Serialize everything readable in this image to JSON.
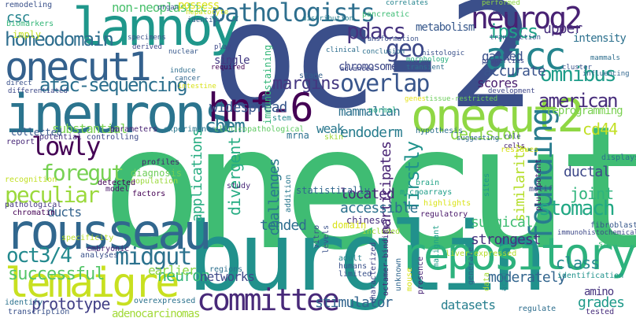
{
  "words": [
    {
      "text": "onecut",
      "color": "#3fbc73"
    },
    {
      "text": "oc-2",
      "color": "#3b4f8a"
    },
    {
      "text": "burglin",
      "color": "#21918c"
    },
    {
      "text": "ineurons",
      "color": "#2b748e"
    },
    {
      "text": "lannoy",
      "color": "#1f978b"
    },
    {
      "text": "onecut1",
      "color": "#34618d"
    },
    {
      "text": "onecut2",
      "color": "#8fd744"
    },
    {
      "text": "rousseau",
      "color": "#31678e"
    },
    {
      "text": "lemaigre",
      "color": "#c8e020"
    },
    {
      "text": "hnf-6",
      "color": "#440154"
    },
    {
      "text": "repository",
      "color": "#2db27d"
    },
    {
      "text": "committee",
      "color": "#482979"
    },
    {
      "text": "neurog2",
      "color": "#482173"
    },
    {
      "text": "pathologists",
      "color": "#2e6f8e"
    },
    {
      "text": "ajcc",
      "color": "#25858e"
    },
    {
      "text": "founding",
      "color": "#287c8e"
    },
    {
      "text": "overlap",
      "color": "#39568c"
    },
    {
      "text": "lowly",
      "color": "#440154"
    },
    {
      "text": "atac-sequencing",
      "color": "#2d708e"
    },
    {
      "text": "homeodomain",
      "color": "#2e6e8e"
    },
    {
      "text": "foregut",
      "color": "#77d153"
    },
    {
      "text": "peculiar",
      "color": "#9bd93c"
    },
    {
      "text": "midgut",
      "color": "#2c728e"
    },
    {
      "text": "oct3/4",
      "color": "#23898e"
    },
    {
      "text": "pdacs",
      "color": "#463480"
    },
    {
      "text": "ipscs",
      "color": "#1fa188"
    },
    {
      "text": "geo",
      "color": "#3e4989"
    },
    {
      "text": "omnibus",
      "color": "#1e9c89"
    },
    {
      "text": "chem",
      "color": "#2a778e"
    },
    {
      "text": "american",
      "color": "#472d7b"
    },
    {
      "text": "neuron",
      "color": "#35b779"
    },
    {
      "text": "stomach",
      "color": "#22a884"
    },
    {
      "text": "prototype",
      "color": "#424086"
    },
    {
      "text": "successful",
      "color": "#54c568"
    },
    {
      "text": "margins",
      "color": "#453781"
    },
    {
      "text": "widespread",
      "color": "#38588c"
    },
    {
      "text": "endoderm",
      "color": "#287d8e"
    },
    {
      "text": "accurate",
      "color": "#3a548c"
    },
    {
      "text": "scores",
      "color": "#481c6e"
    },
    {
      "text": "firstly",
      "color": "#20928c"
    },
    {
      "text": "divergent",
      "color": "#25ac82"
    },
    {
      "text": "applications",
      "color": "#27ad81"
    },
    {
      "text": "participates",
      "color": "#482374"
    },
    {
      "text": "similarity",
      "color": "#b5de2b"
    },
    {
      "text": "decision",
      "color": "#8bd646"
    },
    {
      "text": "cd44",
      "color": "#c2df23"
    },
    {
      "text": "csc",
      "color": "#25848e"
    },
    {
      "text": "ducts",
      "color": "#33628d"
    },
    {
      "text": "tended",
      "color": "#2e6e8e"
    },
    {
      "text": "accessible",
      "color": "#2c718e"
    },
    {
      "text": "surgical",
      "color": "#40bd72"
    },
    {
      "text": "strongest",
      "color": "#46337f"
    },
    {
      "text": "class",
      "color": "#23888e"
    },
    {
      "text": "moderately",
      "color": "#32658e"
    },
    {
      "text": "grades",
      "color": "#1f9a8a"
    },
    {
      "text": "amino",
      "color": "#46327e"
    },
    {
      "text": "stimulator",
      "color": "#32658e"
    },
    {
      "text": "datasets",
      "color": "#277f8e"
    },
    {
      "text": "networks",
      "color": "#3e4a89"
    },
    {
      "text": "earlier",
      "color": "#8bd646"
    },
    {
      "text": "substantial",
      "color": "#7ad151"
    },
    {
      "text": "chromosome",
      "color": "#3e4989"
    },
    {
      "text": "mammalian",
      "color": "#2d718e"
    },
    {
      "text": "located",
      "color": "#482677"
    },
    {
      "text": "challenges",
      "color": "#2a788e"
    },
    {
      "text": "ductal",
      "color": "#3e4989"
    },
    {
      "text": "joint",
      "color": "#2fb47c"
    },
    {
      "text": "upper",
      "color": "#472f7d"
    },
    {
      "text": "intensity",
      "color": "#2d718e"
    },
    {
      "text": "reprogramming",
      "color": "#7ad151"
    },
    {
      "text": "gained",
      "color": "#3b528b"
    },
    {
      "text": "non-neoplastic",
      "color": "#4ac16d"
    },
    {
      "text": "possess",
      "color": "#dde318"
    },
    {
      "text": "adenocarcinomas",
      "color": "#a2da37"
    },
    {
      "text": "weak",
      "color": "#2a788e"
    },
    {
      "text": "single",
      "color": "#443983"
    },
    {
      "text": "metabolism",
      "color": "#38598c"
    },
    {
      "text": "pancreatic",
      "color": "#3dbc74"
    },
    {
      "text": "imply",
      "color": "#c2df23"
    },
    {
      "text": "biomarkers",
      "color": "#35b779"
    },
    {
      "text": "remodeling",
      "color": "#3b528b"
    },
    {
      "text": "stage",
      "color": "#34618d"
    },
    {
      "text": "immunostaining",
      "color": "#35b779"
    },
    {
      "text": "recognition",
      "color": "#c2df23"
    },
    {
      "text": "pathological",
      "color": "#453781"
    },
    {
      "text": "chromatin",
      "color": "#440154"
    },
    {
      "text": "transcription",
      "color": "#3b528b"
    },
    {
      "text": "identify",
      "color": "#2c728e"
    },
    {
      "text": "tested",
      "color": "#472d7b"
    },
    {
      "text": "embryonic",
      "color": "#482475"
    },
    {
      "text": "analyses",
      "color": "#3b528b"
    },
    {
      "text": "overexpressed",
      "color": "#2c728e"
    },
    {
      "text": "specificity",
      "color": "#b8de29"
    },
    {
      "text": "profiles",
      "color": "#481f70"
    },
    {
      "text": "diagnosis",
      "color": "#6ece58"
    },
    {
      "text": "population",
      "color": "#9bd93c"
    },
    {
      "text": "factors",
      "color": "#440154"
    },
    {
      "text": "model",
      "color": "#481467"
    },
    {
      "text": "detected",
      "color": "#440154"
    },
    {
      "text": "collected",
      "color": "#38588c"
    },
    {
      "text": "report",
      "color": "#482878"
    },
    {
      "text": "potential",
      "color": "#46337f"
    },
    {
      "text": "controlling",
      "color": "#3e4989"
    },
    {
      "text": "experiments",
      "color": "#2a778e"
    },
    {
      "text": "parameters",
      "color": "#482475"
    },
    {
      "text": "clinicopathological",
      "color": "#5ec962"
    },
    {
      "text": "mrna",
      "color": "#2c718e"
    },
    {
      "text": "skin",
      "color": "#9fda3a"
    },
    {
      "text": "stem",
      "color": "#23888e"
    },
    {
      "text": "normal",
      "color": "#25ac82"
    },
    {
      "text": "hypothesis",
      "color": "#2e6f8e"
    },
    {
      "text": "brain",
      "color": "#20a386"
    },
    {
      "text": "microarrays",
      "color": "#1f9e89"
    },
    {
      "text": "highlights",
      "color": "#dae319"
    },
    {
      "text": "regulatory",
      "color": "#481769"
    },
    {
      "text": "statistically",
      "color": "#31678e"
    },
    {
      "text": "chinese",
      "color": "#472f7d"
    },
    {
      "text": "addition",
      "color": "#2a788e"
    },
    {
      "text": "study",
      "color": "#482878"
    },
    {
      "text": "regions",
      "color": "#2d708e"
    },
    {
      "text": "vitro",
      "color": "#3b528b"
    },
    {
      "text": "levels",
      "color": "#3b528b"
    },
    {
      "text": "adult",
      "color": "#26828e"
    },
    {
      "text": "humans",
      "color": "#3b528b"
    },
    {
      "text": "limited",
      "color": "#3b528b"
    },
    {
      "text": "domain",
      "color": "#d8e219"
    },
    {
      "text": "included",
      "color": "#a0da39"
    },
    {
      "text": "characterized",
      "color": "#414487"
    },
    {
      "text": "octamer-binding",
      "color": "#482878"
    },
    {
      "text": "unknown",
      "color": "#31678e"
    },
    {
      "text": "mouse",
      "color": "#d5e21a"
    },
    {
      "text": "presence",
      "color": "#482475"
    },
    {
      "text": "malignant",
      "color": "#1fa088"
    },
    {
      "text": "liver-expressed",
      "color": "#b5de2b"
    },
    {
      "text": "generate",
      "color": "#34618d"
    },
    {
      "text": "acid",
      "color": "#25848e"
    },
    {
      "text": "data",
      "color": "#a5db36"
    },
    {
      "text": "regulate",
      "color": "#2e6e8e"
    },
    {
      "text": "identification",
      "color": "#20928c"
    },
    {
      "text": "immunohistochemical",
      "color": "#3e4989"
    },
    {
      "text": "staining",
      "color": "#3fbc73"
    },
    {
      "text": "fibroblasts",
      "color": "#38588c"
    },
    {
      "text": "pluripotent",
      "color": "#481c6e"
    },
    {
      "text": "motif",
      "color": "#3e4a89"
    },
    {
      "text": "sites",
      "color": "#1f988b"
    },
    {
      "text": "residues",
      "color": "#d8e219"
    },
    {
      "text": "displays",
      "color": "#2c728e"
    },
    {
      "text": "cells",
      "color": "#482071"
    },
    {
      "text": "organ",
      "color": "#39568c"
    },
    {
      "text": "hepatocyte",
      "color": "#d0e11c"
    },
    {
      "text": "identity",
      "color": "#35608d"
    },
    {
      "text": "distribution",
      "color": "#277f8e"
    },
    {
      "text": "correlates",
      "color": "#25848e"
    },
    {
      "text": "performed",
      "color": "#8fd744"
    },
    {
      "text": "days",
      "color": "#3b528b"
    },
    {
      "text": "transfection",
      "color": "#3a548c"
    },
    {
      "text": "properties",
      "color": "#3e4989"
    },
    {
      "text": "mammals",
      "color": "#2e6e8e"
    },
    {
      "text": "cluster",
      "color": "#3b528b"
    },
    {
      "text": "influencing",
      "color": "#31678e"
    },
    {
      "text": "development",
      "color": "#3f4788"
    },
    {
      "text": "tissue-restricted",
      "color": "#6ccd5a"
    },
    {
      "text": "genes",
      "color": "#e5e419"
    },
    {
      "text": "transient",
      "color": "#2e6f8e"
    },
    {
      "text": "transformation",
      "color": "#3b528b"
    },
    {
      "text": "conclusion",
      "color": "#2d708e"
    },
    {
      "text": "histologic",
      "color": "#3b528b"
    },
    {
      "text": "morphology",
      "color": "#29af7f"
    },
    {
      "text": "advanced",
      "color": "#3e4989"
    },
    {
      "text": "clinical",
      "color": "#2e6e8e"
    },
    {
      "text": "specimens",
      "color": "#3b528b"
    },
    {
      "text": "derived",
      "color": "#3e4989"
    },
    {
      "text": "nuclear",
      "color": "#38598c"
    },
    {
      "text": "play",
      "color": "#3e4989"
    },
    {
      "text": "required",
      "color": "#440154"
    },
    {
      "text": "induce",
      "color": "#2e6e8e"
    },
    {
      "text": "cancer",
      "color": "#31678e"
    },
    {
      "text": "direct",
      "color": "#3b528b"
    },
    {
      "text": "differentiated",
      "color": "#3e4989"
    },
    {
      "text": "intestine",
      "color": "#d8e219"
    },
    {
      "text": "suggesting",
      "color": "#31678e"
    },
    {
      "text": "role",
      "color": "#3b528b"
    }
  ]
}
